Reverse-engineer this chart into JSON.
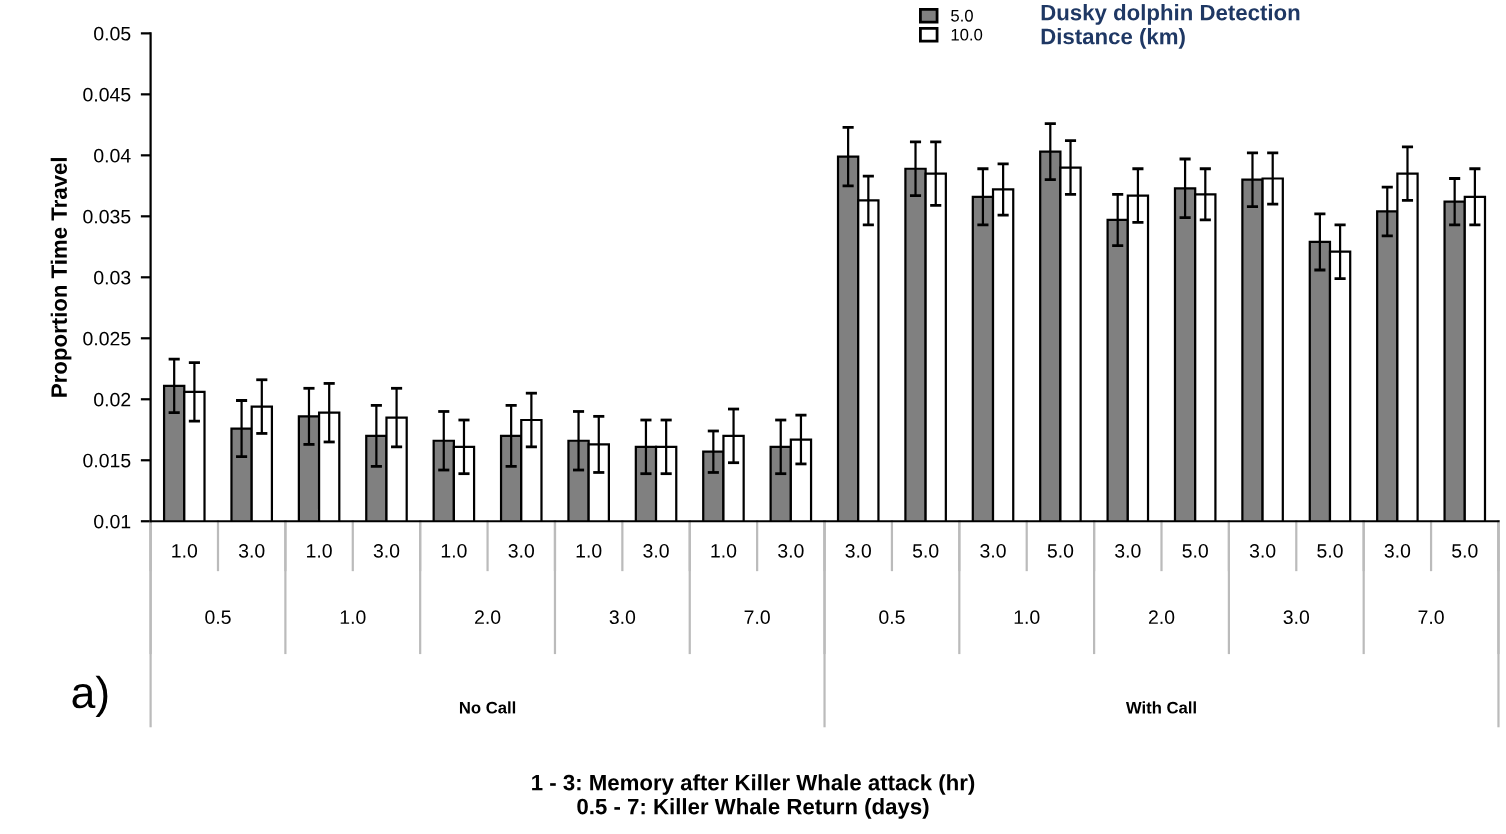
{
  "chart_data": {
    "type": "bar",
    "ylabel": "Proportion Time Travel",
    "legend_title": "Dusky dolphin Detection\nDistance (km)",
    "categories": [
      "1.0",
      "3.0",
      "1.0",
      "3.0",
      "1.0",
      "3.0",
      "1.0",
      "3.0",
      "1.0",
      "3.0",
      "3.0",
      "5.0",
      "3.0",
      "5.0",
      "3.0",
      "5.0",
      "3.0",
      "5.0",
      "3.0",
      "5.0"
    ],
    "series": [
      {
        "name": "5.0",
        "color": "#808080",
        "values": [
          0.0211,
          0.0176,
          0.0186,
          0.017,
          0.0166,
          0.017,
          0.0166,
          0.0161,
          0.0157,
          0.0161,
          0.0399,
          0.0389,
          0.0366,
          0.0403,
          0.0347,
          0.0373,
          0.038,
          0.0329,
          0.0354,
          0.0362
        ],
        "errors": [
          0.0022,
          0.0023,
          0.0023,
          0.0025,
          0.0024,
          0.0025,
          0.0024,
          0.0022,
          0.0017,
          0.0022,
          0.0024,
          0.0022,
          0.0023,
          0.0023,
          0.0021,
          0.0024,
          0.0022,
          0.0023,
          0.002,
          0.0019
        ]
      },
      {
        "name": "10.0",
        "color": "#ffffff",
        "values": [
          0.0206,
          0.0194,
          0.0189,
          0.0185,
          0.0161,
          0.0183,
          0.0163,
          0.0161,
          0.017,
          0.0167,
          0.0363,
          0.0385,
          0.0372,
          0.039,
          0.0367,
          0.0368,
          0.0381,
          0.0321,
          0.0385,
          0.0366
        ],
        "errors": [
          0.0024,
          0.0022,
          0.0024,
          0.0024,
          0.0022,
          0.0022,
          0.0023,
          0.0022,
          0.0022,
          0.002,
          0.002,
          0.0026,
          0.0021,
          0.0022,
          0.0022,
          0.0021,
          0.0021,
          0.0022,
          0.0022,
          0.0023
        ]
      }
    ],
    "annotations": [
      "0.5",
      "1.0",
      "2.0",
      "3.0",
      "7.0",
      "0.5",
      "1.0",
      "2.0",
      "3.0",
      "7.0",
      "No Call",
      "With Call",
      "a)",
      "1 - 3: Memory after Killer Whale attack (hr)\n0.5 - 7: Killer Whale Return (days)"
    ],
    "ylim": [
      0.01,
      0.05
    ],
    "yticks": [
      0.01,
      0.015,
      0.02,
      0.025,
      0.03,
      0.035,
      0.04,
      0.045,
      0.05
    ],
    "grid": false,
    "legend": "top right"
  }
}
